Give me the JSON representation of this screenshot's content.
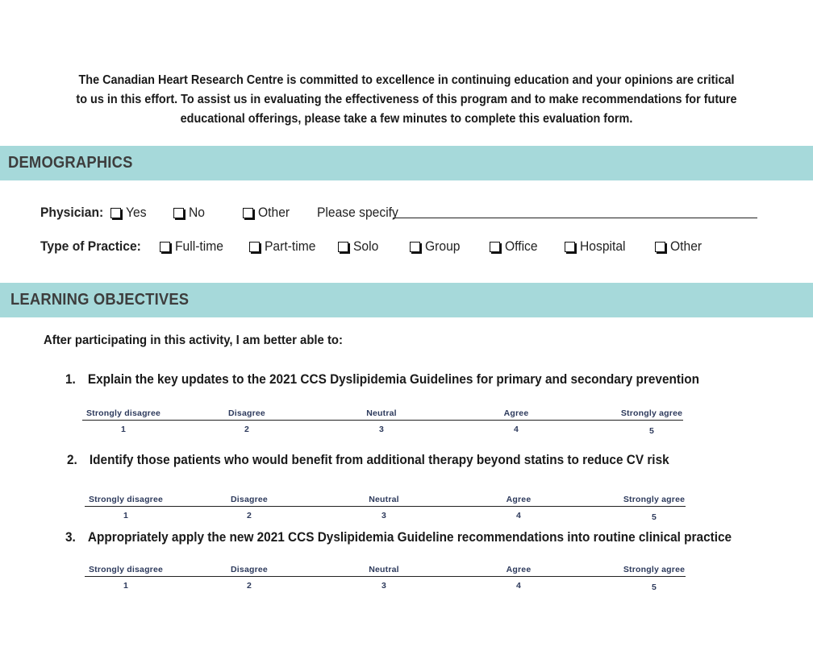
{
  "intro": {
    "line1": "The Canadian Heart Research Centre is committed to excellence in continuing education and your opinions are critical",
    "line2": "to us in this effort. To assist us in evaluating the effectiveness of this program and to make recommendations for future",
    "line3": "educational offerings, please take a few minutes to complete this evaluation form."
  },
  "demographics": {
    "heading": "DEMOGRAPHICS",
    "physician": {
      "label": "Physician:",
      "options": [
        "Yes",
        "No",
        "Other"
      ],
      "specify": "Please specify"
    },
    "practice": {
      "label": "Type of Practice:",
      "options": [
        "Full-time",
        "Part-time",
        "Solo",
        "Group",
        "Office",
        "Hospital",
        "Other"
      ]
    }
  },
  "learning": {
    "heading": "LEARNING OBJECTIVES",
    "prompt": "After participating in this activity, I am better able to:",
    "objectives": [
      {
        "num": "1.",
        "text": "Explain the key updates to the 2021 CCS Dyslipidemia Guidelines for primary and secondary prevention"
      },
      {
        "num": "2.",
        "text": "Identify those patients who would benefit from additional therapy beyond statins to reduce CV risk"
      },
      {
        "num": "3.",
        "text": "Appropriately apply the new 2021 CCS Dyslipidemia Guideline recommendations into routine clinical practice"
      }
    ],
    "scale": {
      "labels": [
        "Strongly disagree",
        "Disagree",
        "Neutral",
        "Agree",
        "Strongly agree"
      ],
      "values": [
        "1",
        "2",
        "3",
        "4",
        "5"
      ]
    }
  }
}
